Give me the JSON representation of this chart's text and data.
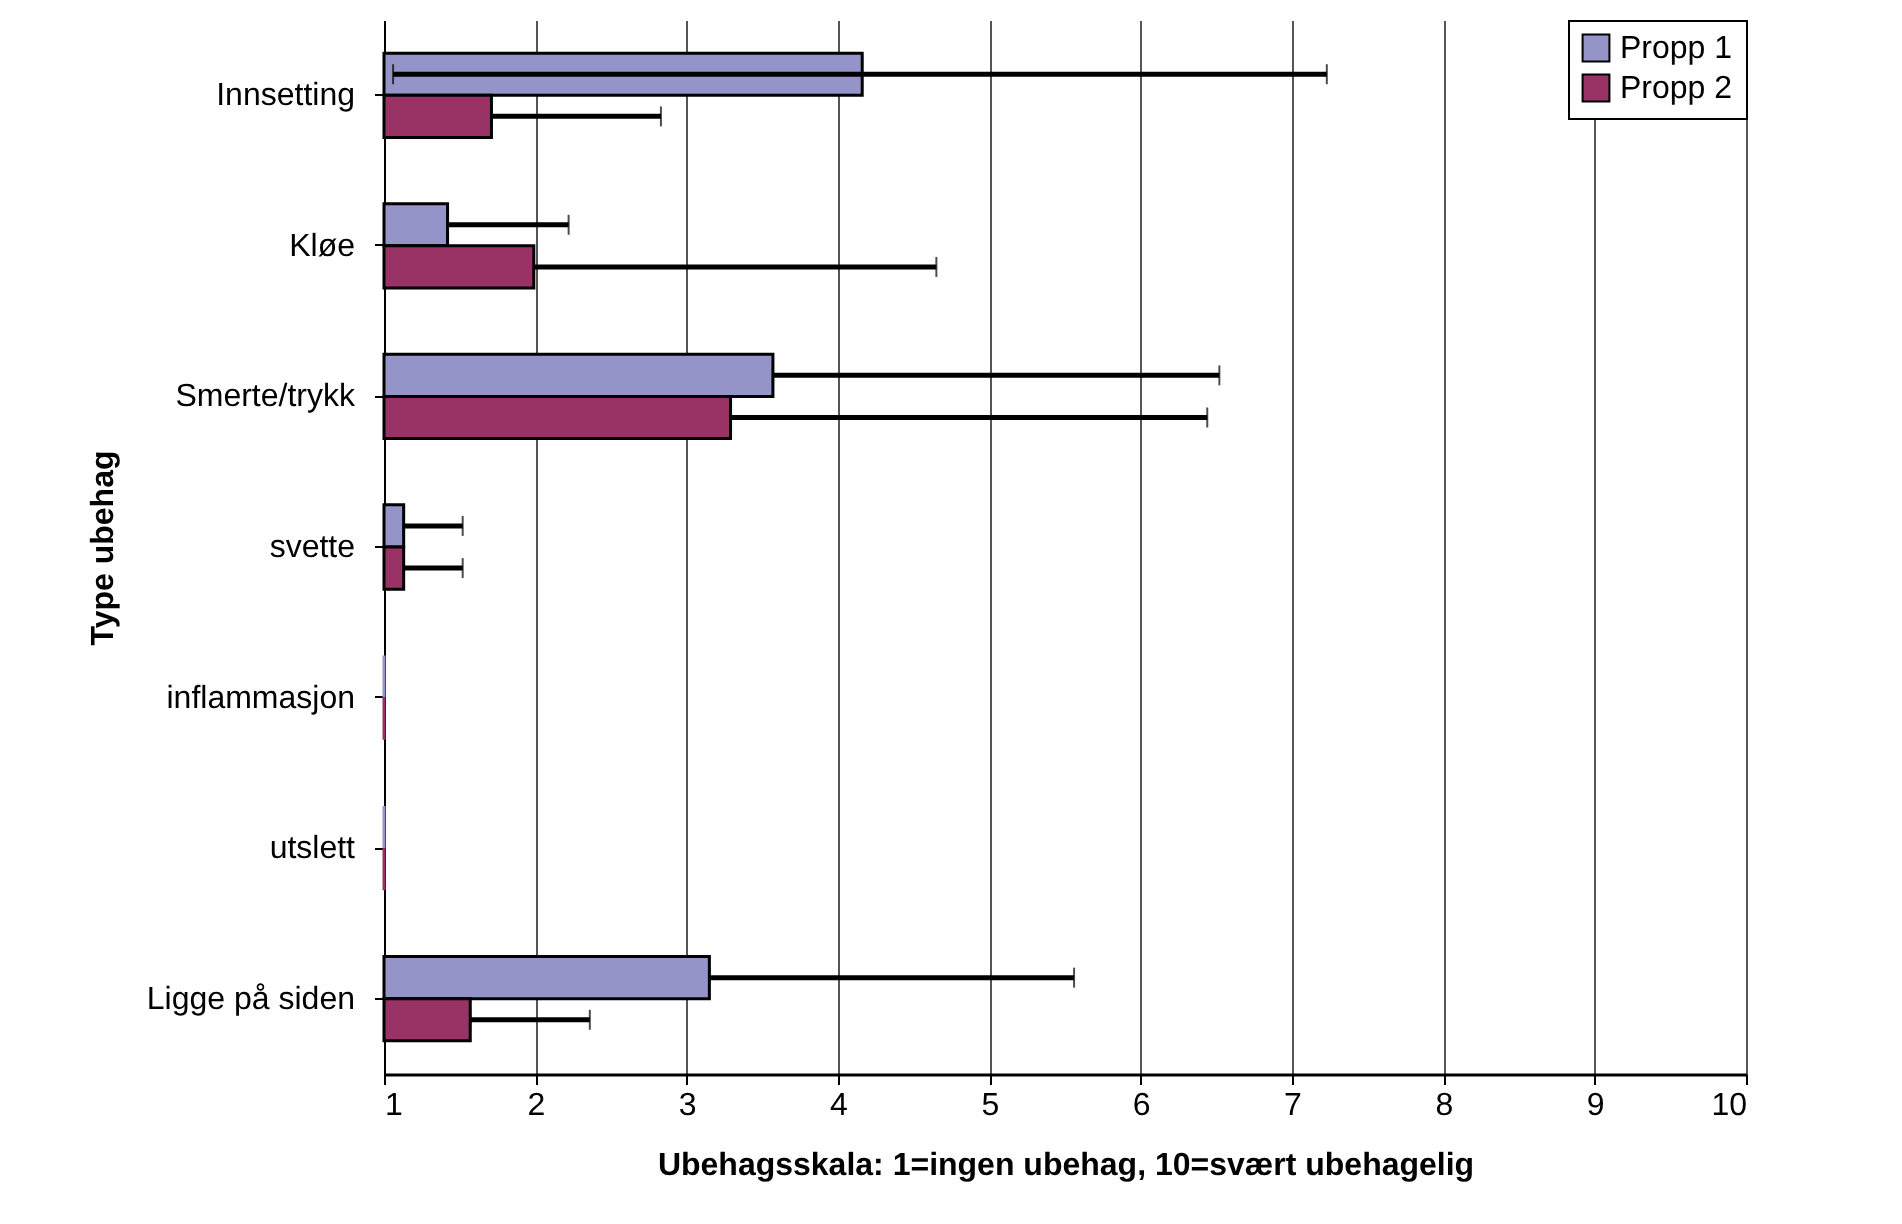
{
  "chart_data": {
    "type": "bar",
    "orientation": "horizontal",
    "xlabel": "Ubehagsskala: 1=ingen ubehag, 10=svært ubehagelig",
    "ylabel": "Type ubehag",
    "categories": [
      "Innsetting",
      "Kløe",
      "Smerte/trykk",
      "svette",
      "inflammasjon",
      "utslett",
      "Ligge på siden"
    ],
    "series": [
      {
        "name": "Propp 1",
        "color": "#9494c8",
        "values": [
          4.16,
          1.42,
          3.57,
          1.13,
          1.0,
          1.0,
          3.15
        ],
        "errors": [
          [
            1.06,
            7.23
          ],
          [
            1.42,
            2.22
          ],
          [
            3.57,
            6.52
          ],
          [
            1.13,
            1.52
          ],
          null,
          null,
          [
            3.15,
            5.56
          ]
        ]
      },
      {
        "name": "Propp 2",
        "color": "#993366",
        "values": [
          1.71,
          1.99,
          3.29,
          1.13,
          1.0,
          1.0,
          1.57
        ],
        "errors": [
          [
            1.71,
            2.83
          ],
          [
            1.99,
            4.65
          ],
          [
            3.29,
            6.44
          ],
          [
            1.13,
            1.52
          ],
          null,
          null,
          [
            1.57,
            2.36
          ]
        ]
      }
    ],
    "xlim": [
      1,
      10
    ],
    "xticks": [
      1,
      2,
      3,
      4,
      5,
      6,
      7,
      8,
      9,
      10
    ],
    "grid": "x",
    "legend": "top right"
  }
}
